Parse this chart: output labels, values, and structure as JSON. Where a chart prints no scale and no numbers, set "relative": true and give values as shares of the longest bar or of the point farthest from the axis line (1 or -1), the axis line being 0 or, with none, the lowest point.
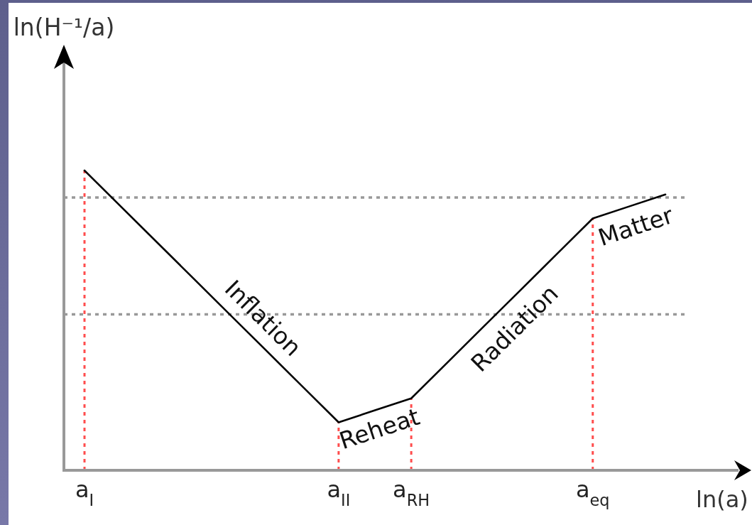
{
  "chart_data": {
    "type": "line",
    "relative": true,
    "xlabel": "ln(a)",
    "categories": [
      "a$_{I}$",
      null,
      null,
      null,
      null,
      null,
      null,
      "a$_{II}$",
      null,
      "a$_{RH}$",
      null,
      null,
      null,
      null,
      "a$_{eq}$",
      null,
      null
    ],
    "tick_labels": "x",
    "series": [
      {
        "color": "#000000",
        "values": [
          1,
          0.88,
          0.76,
          0.64,
          0.52,
          0.4,
          0.28,
          0.16,
          0.2,
          0.24,
          0.36,
          0.48,
          0.6,
          0.72,
          0.84,
          0.88,
          0.92
        ]
      }
    ],
    "ref_lines": [
      {
        "axis": "y",
        "value": 0.91,
        "color": "#999999",
        "line_style": "dotted"
      },
      {
        "axis": "y",
        "value": 0.52,
        "color": "#999999",
        "line_style": "dotted"
      },
      {
        "axis": "x",
        "value": "a$_{I}$",
        "color": "#ff4d4d",
        "line_style": "dotted"
      },
      {
        "axis": "x",
        "value": "a$_{II}$",
        "color": "#ff4d4d",
        "line_style": "dotted"
      },
      {
        "axis": "x",
        "value": "a$_{RH}$",
        "color": "#ff4d4d",
        "line_style": "dotted"
      },
      {
        "axis": "x",
        "value": "a$_{eq}$",
        "color": "#ff4d4d",
        "line_style": "dotted"
      }
    ],
    "annotations": [
      "Inflation",
      "Reheat",
      "Radiation",
      "Matter",
      "ln(H⁻¹/a)"
    ]
  }
}
